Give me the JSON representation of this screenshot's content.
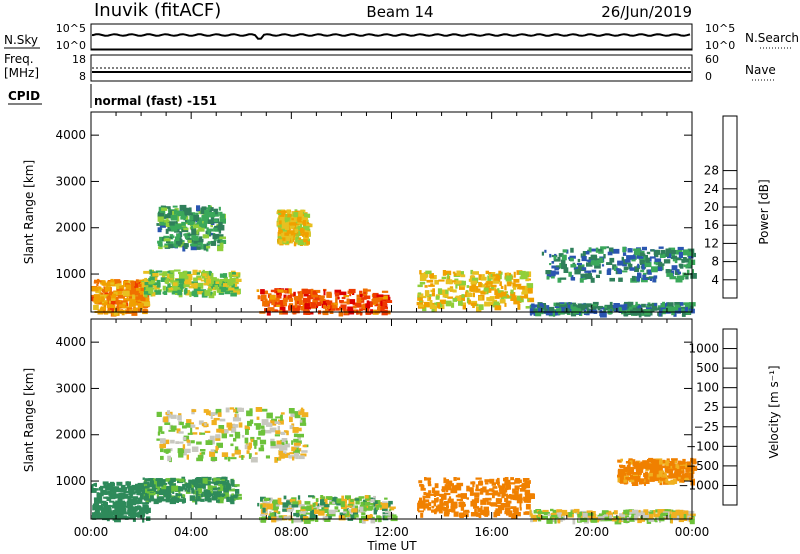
{
  "header": {
    "station": "Inuvik (fitACF)",
    "beam": "Beam 14",
    "date": "26/Jun/2019"
  },
  "strip1": {
    "left_label": "N.Sky",
    "right_label": "N.Search",
    "left_ticks": [
      "10^5",
      "10^0"
    ],
    "right_ticks": [
      "10^5",
      "10^0"
    ]
  },
  "strip2": {
    "left_label_1": "Freq.",
    "left_label_2": "[MHz]",
    "right_label": "Nave",
    "left_ticks": [
      "18",
      "8"
    ],
    "right_ticks": [
      "60",
      "0"
    ]
  },
  "cpid": {
    "label": "CPID",
    "value": "normal (fast) -151"
  },
  "chart_data": [
    {
      "type": "heatmap",
      "title": "",
      "ylabel": "Slant Range [km]",
      "ylim": [
        180,
        4500
      ],
      "y_ticks": [
        1000,
        2000,
        3000,
        4000
      ],
      "colorbar": {
        "label": "Power [dB]",
        "ticks": [
          "4",
          "8",
          "12",
          "16",
          "20",
          "24",
          "28"
        ],
        "colors": [
          "#1515e0",
          "#2a55b0",
          "#2f7f5a",
          "#3aa85a",
          "#8fcf3a",
          "#e8c020",
          "#f0a000",
          "#f07000",
          "#ee3a00",
          "#dd0000"
        ]
      },
      "regions": [
        {
          "t0": 0.0,
          "t1": 2.2,
          "r0": 200,
          "r1": 900,
          "val": 22
        },
        {
          "t0": 2.0,
          "t1": 5.8,
          "r0": 600,
          "r1": 1100,
          "val": 14
        },
        {
          "t0": 2.6,
          "t1": 5.2,
          "r0": 1600,
          "r1": 2500,
          "val": 10
        },
        {
          "t0": 6.6,
          "t1": 11.8,
          "r0": 180,
          "r1": 700,
          "val": 26
        },
        {
          "t0": 7.4,
          "t1": 8.6,
          "r0": 1700,
          "r1": 2400,
          "val": 18
        },
        {
          "t0": 13.0,
          "t1": 17.5,
          "r0": 300,
          "r1": 1100,
          "val": 18
        },
        {
          "t0": 17.5,
          "t1": 24.0,
          "r0": 180,
          "r1": 400,
          "val": 8
        },
        {
          "t0": 18.0,
          "t1": 24.0,
          "r0": 900,
          "r1": 1600,
          "val": 8
        }
      ]
    },
    {
      "type": "heatmap",
      "title": "",
      "xlabel": "Time UT",
      "ylabel": "Slant Range [km]",
      "ylim": [
        180,
        4500
      ],
      "y_ticks": [
        1000,
        2000,
        3000,
        4000
      ],
      "x_ticks": [
        "00:00",
        "04:00",
        "08:00",
        "12:00",
        "16:00",
        "20:00",
        "00:00"
      ],
      "colorbar": {
        "label": "Velocity [m s⁻¹]",
        "ticks": [
          "1000",
          "500",
          "100",
          "25",
          "−25",
          "−100",
          "−500",
          "−1000"
        ],
        "colors": [
          "#2233aa",
          "#2f6fb0",
          "#2e8a5a",
          "#6cc23a",
          "#c8c8c0",
          "#f0b020",
          "#f08000",
          "#e85000",
          "#dd0000"
        ]
      },
      "regions": [
        {
          "t0": 0.0,
          "t1": 2.2,
          "r0": 200,
          "r1": 1000,
          "val": 200
        },
        {
          "t0": 2.0,
          "t1": 5.8,
          "r0": 600,
          "r1": 1100,
          "val": 150
        },
        {
          "t0": 2.6,
          "t1": 8.6,
          "r0": 1500,
          "r1": 2600,
          "val": 0
        },
        {
          "t0": 6.6,
          "t1": 12.0,
          "r0": 180,
          "r1": 700,
          "val": 40
        },
        {
          "t0": 13.0,
          "t1": 17.5,
          "r0": 300,
          "r1": 1100,
          "val": -300
        },
        {
          "t0": 17.5,
          "t1": 24.0,
          "r0": 180,
          "r1": 400,
          "val": 0
        },
        {
          "t0": 21.0,
          "t1": 24.0,
          "r0": 1000,
          "r1": 1500,
          "val": -150
        }
      ]
    }
  ]
}
